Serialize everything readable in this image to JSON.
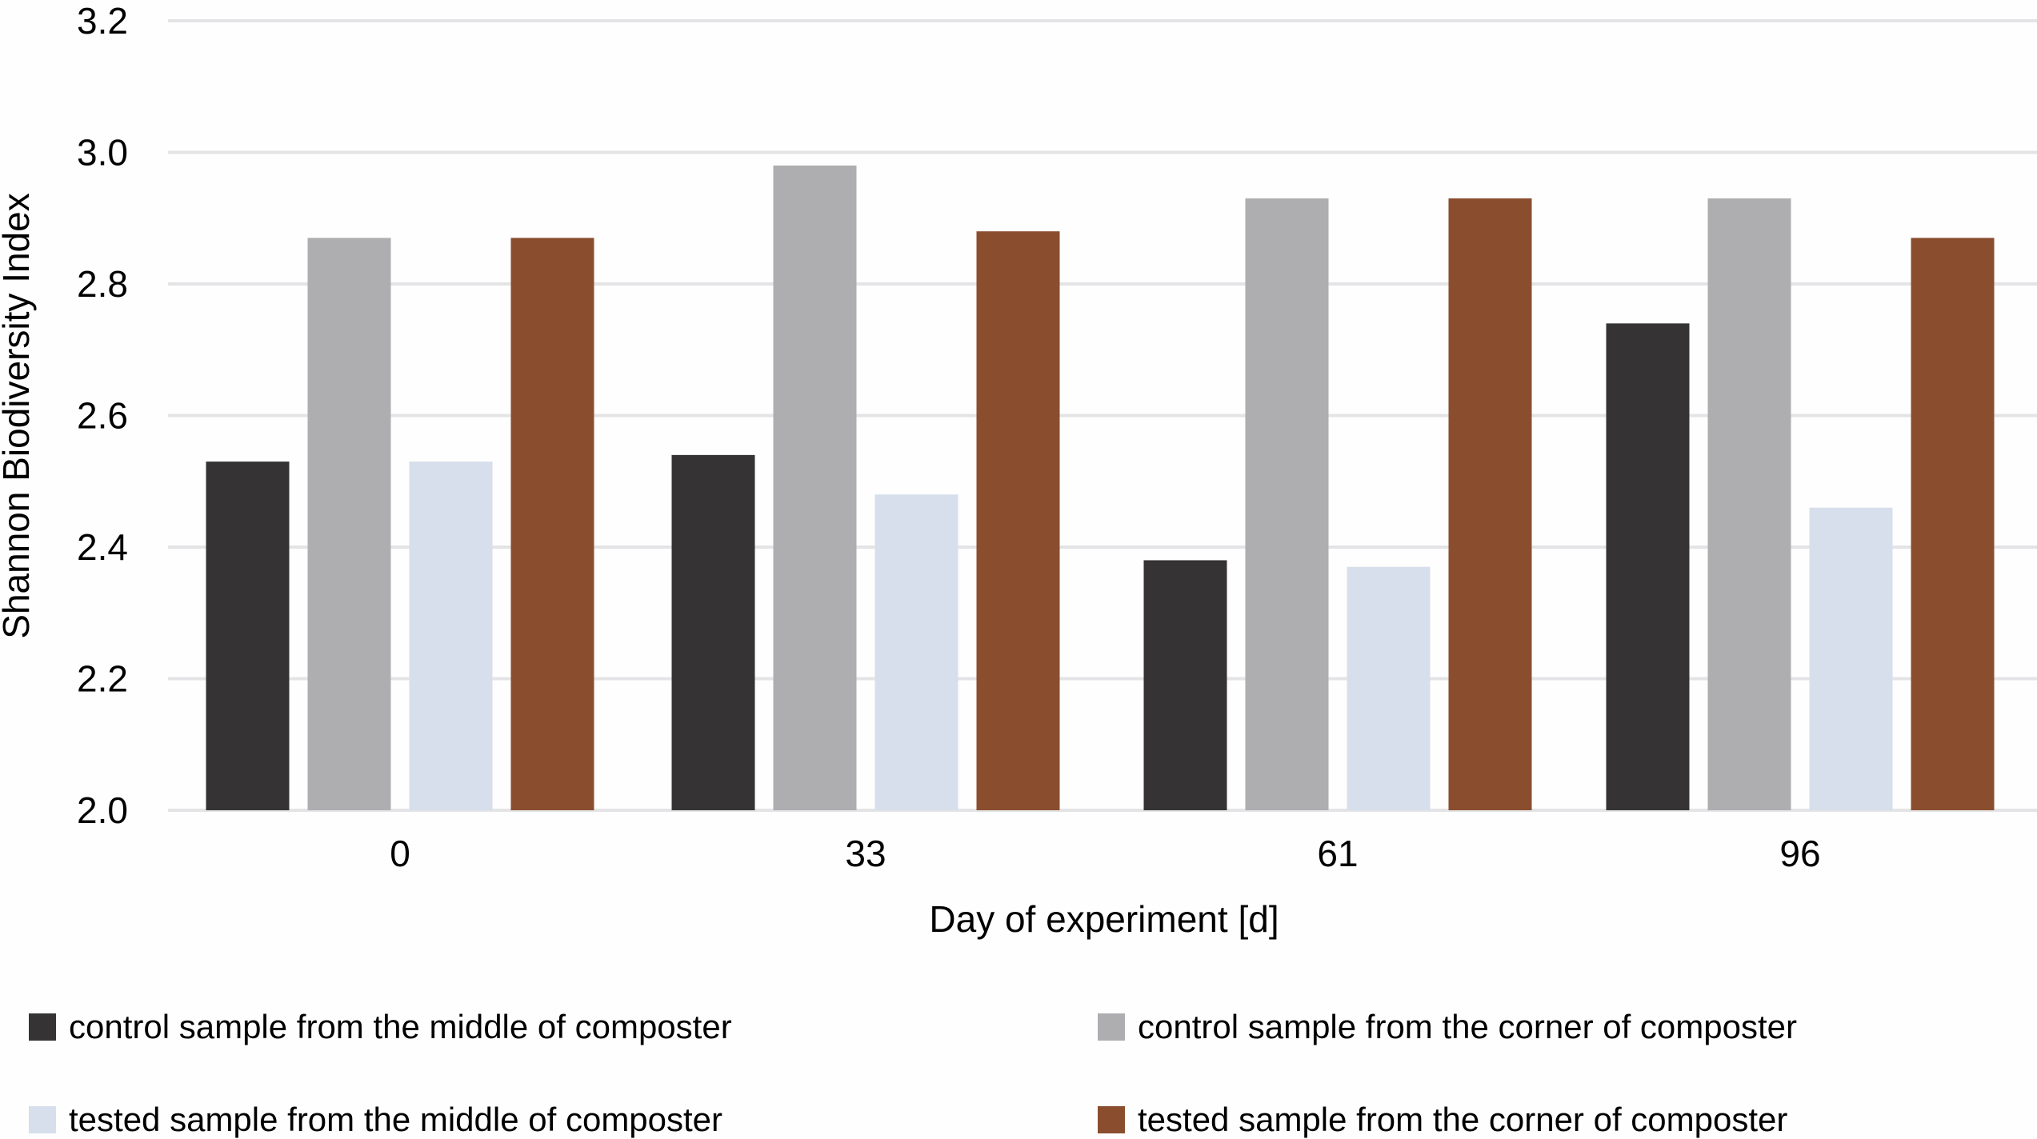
{
  "chart_data": {
    "type": "bar",
    "title": "",
    "xlabel": "Day of experiment [d]",
    "ylabel": "Shannon Biodiversity Index",
    "categories": [
      "0",
      "33",
      "61",
      "96"
    ],
    "ylim": [
      2.0,
      3.2
    ],
    "yticks": [
      "2.0",
      "2.2",
      "2.4",
      "2.6",
      "2.8",
      "3.0",
      "3.2"
    ],
    "grid": true,
    "legend_position": "bottom",
    "series": [
      {
        "name": "control sample from the middle of composter",
        "color": "#353334",
        "values": [
          2.53,
          2.54,
          2.38,
          2.74
        ]
      },
      {
        "name": "control sample from the corner of composter",
        "color": "#aeaeb0",
        "values": [
          2.87,
          2.98,
          2.93,
          2.93
        ]
      },
      {
        "name": "tested sample from the middle of composter",
        "color": "#d6dfeb",
        "values": [
          2.53,
          2.48,
          2.37,
          2.46
        ]
      },
      {
        "name": "tested sample from the corner of composter",
        "color": "#8a4e2f",
        "values": [
          2.87,
          2.88,
          2.93,
          2.87
        ]
      }
    ]
  }
}
